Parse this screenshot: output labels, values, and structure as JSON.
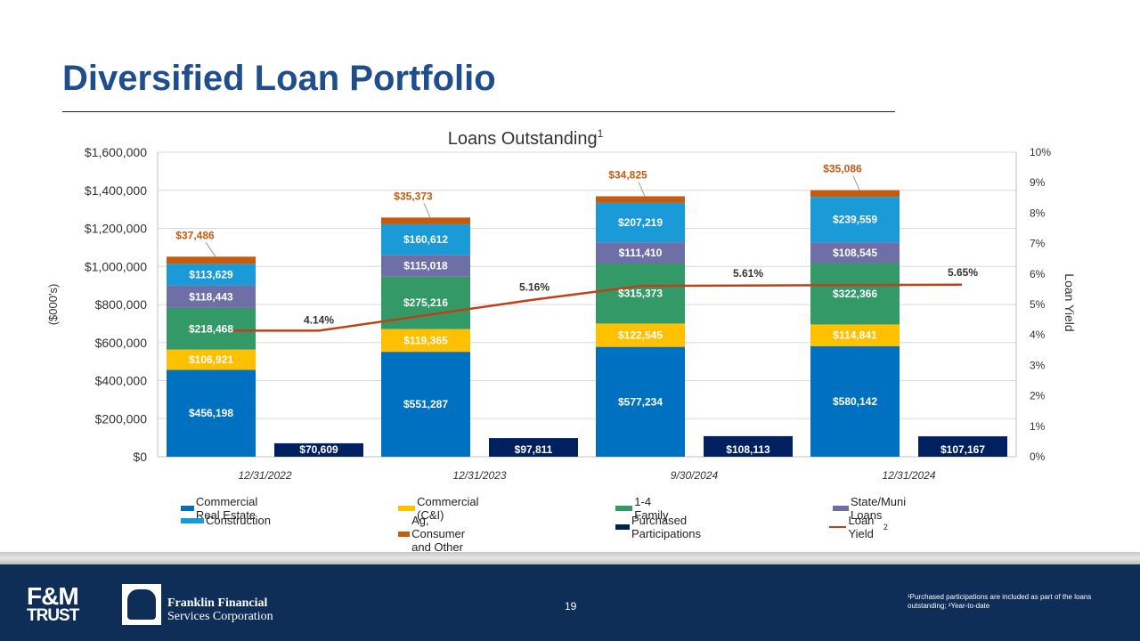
{
  "slide": {
    "title": "Diversified Loan Portfolio",
    "page_number": "19",
    "footnote": "¹Purchased participations are included as part of the loans outstanding; ²Year-to-date"
  },
  "logos": {
    "fm_top": "F&M",
    "fm_bottom": "TRUST",
    "ffsc_line1": "Franklin Financial",
    "ffsc_line2": "Services Corporation"
  },
  "chart_data": {
    "type": "bar",
    "stacked": true,
    "title": "Loans Outstanding",
    "title_superscript": "1",
    "ylabel": "($000's)",
    "y2label": "Loan Yield",
    "ylim": [
      0,
      1600000
    ],
    "y2lim": [
      0,
      10
    ],
    "y_ticks": [
      "$0",
      "$200,000",
      "$400,000",
      "$600,000",
      "$800,000",
      "$1,000,000",
      "$1,200,000",
      "$1,400,000",
      "$1,600,000"
    ],
    "y2_ticks": [
      "0%",
      "1%",
      "2%",
      "3%",
      "4%",
      "5%",
      "6%",
      "7%",
      "8%",
      "9%",
      "10%"
    ],
    "categories": [
      "12/31/2022",
      "12/31/2023",
      "9/30/2024",
      "12/31/2024"
    ],
    "series": [
      {
        "name": "Commercial Real Estate",
        "color": "#0070c0",
        "values": [
          456198,
          551287,
          577234,
          580142
        ],
        "labels": [
          "$456,198",
          "$551,287",
          "$577,234",
          "$580,142"
        ]
      },
      {
        "name": "Commercial (C&I)",
        "color": "#ffc000",
        "values": [
          106921,
          119365,
          122545,
          114841
        ],
        "labels": [
          "$106,921",
          "$119,365",
          "$122,545",
          "$114,841"
        ]
      },
      {
        "name": "1-4 Family",
        "color": "#339966",
        "values": [
          218468,
          275216,
          315373,
          322366
        ],
        "labels": [
          "$218,468",
          "$275,216",
          "$315,373",
          "$322,366"
        ]
      },
      {
        "name": "State/Muni Loans",
        "color": "#6f6fa8",
        "values": [
          118443,
          115018,
          111410,
          108545
        ],
        "labels": [
          "$118,443",
          "$115,018",
          "$111,410",
          "$108,545"
        ]
      },
      {
        "name": "Construction",
        "color": "#1a9bd7",
        "values": [
          113629,
          160612,
          207219,
          239559
        ],
        "labels": [
          "$113,629",
          "$160,612",
          "$207,219",
          "$239,559"
        ]
      },
      {
        "name": "Ag, Consumer and Other",
        "color": "#c55a11",
        "values": [
          37486,
          35373,
          34825,
          35086
        ],
        "labels": [
          "$37,486",
          "$35,373",
          "$34,825",
          "$35,086"
        ]
      }
    ],
    "purchased_participations": {
      "name": "Purchased Participations",
      "color": "#002060",
      "values": [
        70609,
        97811,
        108113,
        107167
      ],
      "labels": [
        "$70,609",
        "$97,811",
        "$108,113",
        "$107,167"
      ]
    },
    "loan_yield": {
      "name": "Loan Yield",
      "name_superscript": "2",
      "color": "#c0401a",
      "values": [
        4.14,
        5.16,
        5.61,
        5.65
      ],
      "labels": [
        "4.14%",
        "5.16%",
        "5.61%",
        "5.65%"
      ]
    },
    "legend": {
      "placement": "bottom"
    },
    "grid": true
  }
}
